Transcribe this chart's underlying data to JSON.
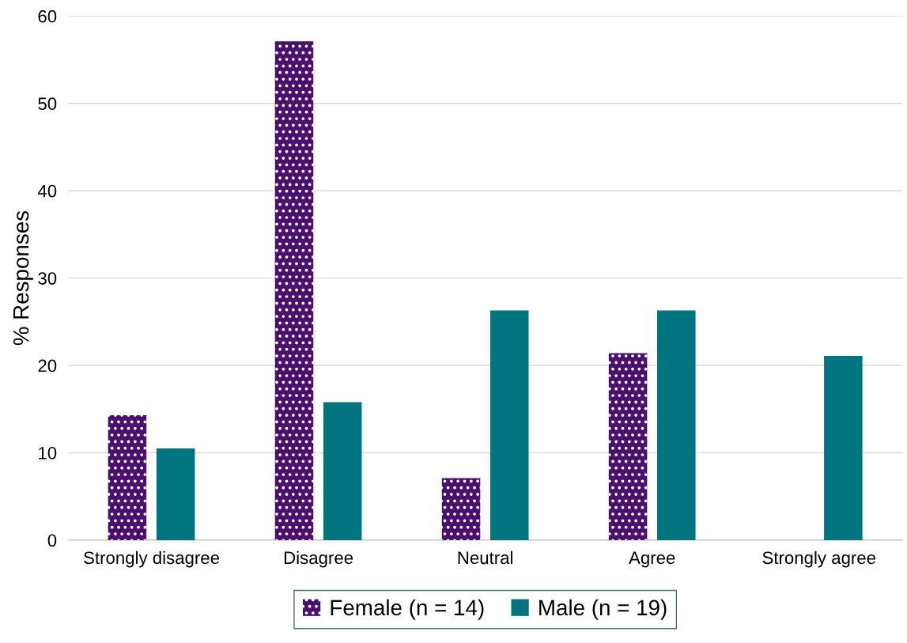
{
  "chart_data": {
    "type": "bar",
    "ylabel": "% Responses",
    "categories": [
      "Strongly disagree",
      "Disagree",
      "Neutral",
      "Agree",
      "Strongly agree"
    ],
    "series": [
      {
        "name": "Female (n = 14)",
        "color": "#4b0f6e",
        "values": [
          14.3,
          57.1,
          7.1,
          21.4,
          0
        ]
      },
      {
        "name": "Male (n = 19)",
        "color": "#00747f",
        "values": [
          10.5,
          15.8,
          26.3,
          26.3,
          21.1
        ]
      }
    ],
    "ylim": [
      0,
      60
    ],
    "yticks": [
      0,
      10,
      20,
      30,
      40,
      50,
      60
    ],
    "grid": "y",
    "legend": "bottom"
  }
}
